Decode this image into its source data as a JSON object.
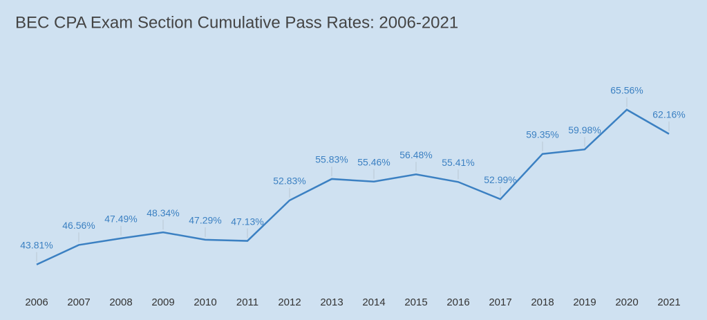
{
  "chart_data": {
    "type": "line",
    "title": "BEC CPA Exam Section Cumulative Pass Rates: 2006-2021",
    "categories": [
      "2006",
      "2007",
      "2008",
      "2009",
      "2010",
      "2011",
      "2012",
      "2013",
      "2014",
      "2015",
      "2016",
      "2017",
      "2018",
      "2019",
      "2020",
      "2021"
    ],
    "series": [
      {
        "name": "BEC",
        "color": "#3b80c2",
        "values": [
          43.81,
          46.56,
          47.49,
          48.34,
          47.29,
          47.13,
          52.83,
          55.83,
          55.46,
          56.48,
          55.41,
          52.99,
          59.35,
          59.98,
          65.56,
          62.16
        ],
        "value_labels": [
          "43.81%",
          "46.56%",
          "47.49%",
          "48.34%",
          "47.29%",
          "47.13%",
          "52.83%",
          "55.83%",
          "55.46%",
          "56.48%",
          "55.41%",
          "52.99%",
          "59.35%",
          "59.98%",
          "65.56%",
          "62.16%"
        ]
      }
    ],
    "ylim": [
      40,
      70
    ]
  }
}
